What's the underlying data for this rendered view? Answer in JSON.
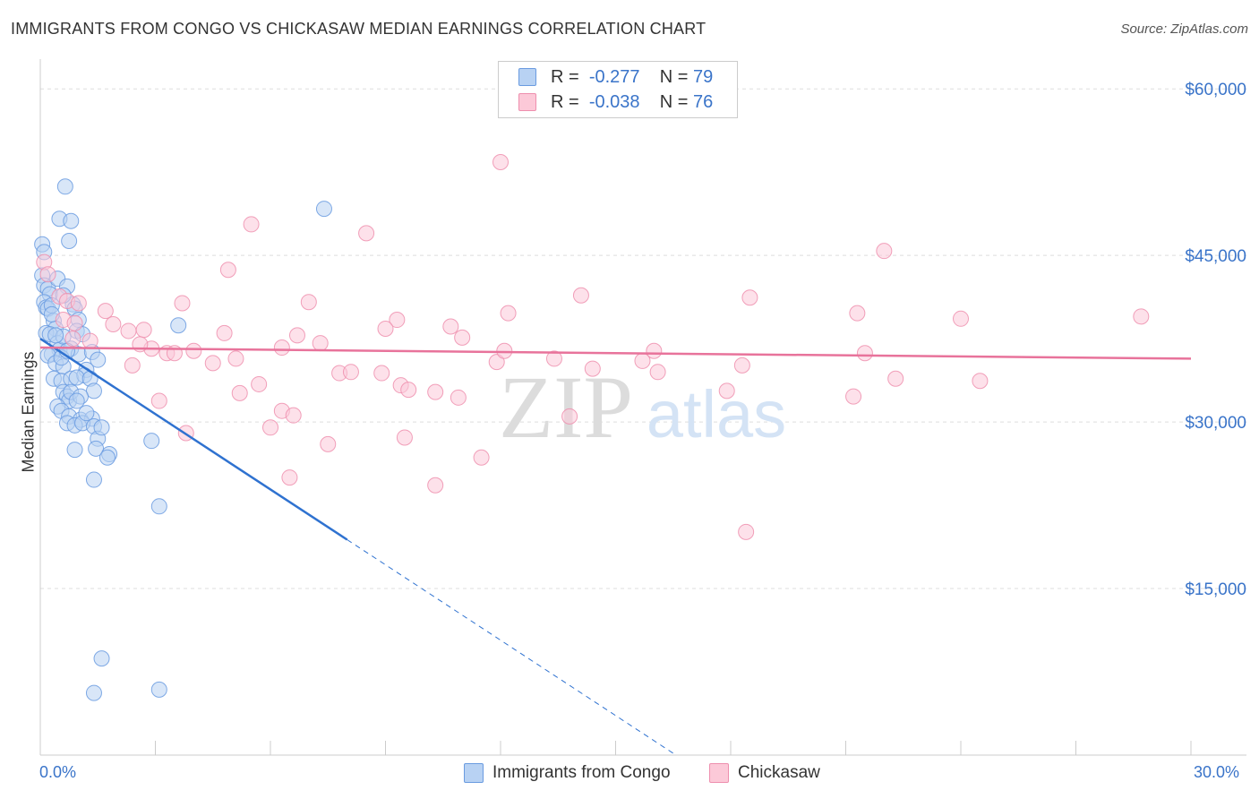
{
  "title": "IMMIGRANTS FROM CONGO VS CHICKASAW MEDIAN EARNINGS CORRELATION CHART",
  "source": "Source: ZipAtlas.com",
  "watermark": {
    "zip": "ZIP",
    "atlas": "atlas"
  },
  "legend": {
    "rows": [
      {
        "r_label": "R =",
        "r_value": "-0.277",
        "n_label": "N =",
        "n_value": "79",
        "color": "#b8d2f3",
        "stroke": "#6a9be0"
      },
      {
        "r_label": "R =",
        "r_value": "-0.038",
        "n_label": "N =",
        "n_value": "76",
        "color": "#fcc9d8",
        "stroke": "#ee8fae"
      }
    ]
  },
  "bottom_legend": [
    "Immigrants from Congo",
    "Chickasaw"
  ],
  "chart_data": {
    "type": "scatter",
    "xlabel": "",
    "ylabel": "Median Earnings",
    "xlim": [
      0,
      30
    ],
    "ylim": [
      0,
      63000
    ],
    "x_tick_labels": [
      "0.0%",
      "30.0%"
    ],
    "y_ticks": [
      15000,
      30000,
      45000,
      60000
    ],
    "y_tick_labels": [
      "$15,000",
      "$30,000",
      "$45,000",
      "$60,000"
    ],
    "grid": true,
    "legend_position": "top-center",
    "series": [
      {
        "name": "Immigrants from Congo",
        "color": "#6a9be0",
        "fill": "#b8d2f3",
        "line_color": "#2f72d0",
        "trend": {
          "x0": 0.0,
          "y0": 37500,
          "x1": 8.0,
          "y1": 19400,
          "dash_to_x": 16.5
        },
        "points": [
          [
            0.05,
            46000
          ],
          [
            0.1,
            45300
          ],
          [
            0.05,
            43200
          ],
          [
            0.1,
            42300
          ],
          [
            0.2,
            42000
          ],
          [
            0.25,
            41500
          ],
          [
            0.1,
            40800
          ],
          [
            0.15,
            40300
          ],
          [
            0.2,
            40200
          ],
          [
            0.3,
            40500
          ],
          [
            0.35,
            39100
          ],
          [
            0.4,
            38400
          ],
          [
            0.15,
            38000
          ],
          [
            0.25,
            37900
          ],
          [
            0.45,
            37100
          ],
          [
            0.5,
            36500
          ],
          [
            0.3,
            36100
          ],
          [
            0.2,
            36000
          ],
          [
            0.4,
            35300
          ],
          [
            0.6,
            35000
          ],
          [
            0.35,
            33900
          ],
          [
            0.55,
            33700
          ],
          [
            0.8,
            33900
          ],
          [
            0.6,
            32700
          ],
          [
            0.7,
            32300
          ],
          [
            0.75,
            31900
          ],
          [
            0.45,
            31400
          ],
          [
            0.55,
            31000
          ],
          [
            0.75,
            30500
          ],
          [
            1.05,
            30200
          ],
          [
            1.35,
            30300
          ],
          [
            0.7,
            29900
          ],
          [
            0.9,
            29700
          ],
          [
            1.1,
            29900
          ],
          [
            1.4,
            29600
          ],
          [
            1.5,
            28500
          ],
          [
            1.45,
            27600
          ],
          [
            1.8,
            27100
          ],
          [
            1.75,
            26800
          ],
          [
            1.4,
            24800
          ],
          [
            0.65,
            51200
          ],
          [
            0.5,
            48300
          ],
          [
            0.8,
            48100
          ],
          [
            0.75,
            46300
          ],
          [
            0.45,
            42900
          ],
          [
            0.7,
            42200
          ],
          [
            0.85,
            40600
          ],
          [
            0.9,
            40200
          ],
          [
            1.0,
            39200
          ],
          [
            0.95,
            38200
          ],
          [
            1.1,
            37900
          ],
          [
            0.6,
            37700
          ],
          [
            0.8,
            36600
          ],
          [
            1.0,
            36100
          ],
          [
            1.35,
            36300
          ],
          [
            1.5,
            35600
          ],
          [
            1.2,
            34700
          ],
          [
            1.15,
            34200
          ],
          [
            0.95,
            34000
          ],
          [
            1.3,
            33900
          ],
          [
            1.4,
            32800
          ],
          [
            0.8,
            32700
          ],
          [
            1.05,
            32300
          ],
          [
            0.95,
            31900
          ],
          [
            3.6,
            38700
          ],
          [
            2.9,
            28300
          ],
          [
            3.1,
            22400
          ],
          [
            7.4,
            49200
          ],
          [
            1.6,
            8700
          ],
          [
            1.4,
            5600
          ],
          [
            3.1,
            5900
          ],
          [
            0.6,
            41400
          ],
          [
            0.3,
            39700
          ],
          [
            0.55,
            35800
          ],
          [
            1.2,
            30800
          ],
          [
            1.6,
            29500
          ],
          [
            0.9,
            27500
          ],
          [
            0.7,
            36400
          ],
          [
            0.4,
            37800
          ]
        ]
      },
      {
        "name": "Chickasaw",
        "color": "#ee8fae",
        "fill": "#fcc9d8",
        "line_color": "#e8739b",
        "trend": {
          "x0": 0.0,
          "y0": 36700,
          "x1": 30.0,
          "y1": 35700
        },
        "points": [
          [
            0.1,
            44400
          ],
          [
            0.2,
            43300
          ],
          [
            0.5,
            41300
          ],
          [
            0.7,
            40900
          ],
          [
            1.0,
            40700
          ],
          [
            1.7,
            40000
          ],
          [
            0.6,
            39200
          ],
          [
            0.9,
            38900
          ],
          [
            2.3,
            38200
          ],
          [
            2.7,
            38300
          ],
          [
            0.85,
            37500
          ],
          [
            1.3,
            37300
          ],
          [
            2.9,
            36600
          ],
          [
            3.3,
            36200
          ],
          [
            4.0,
            36400
          ],
          [
            4.5,
            35300
          ],
          [
            5.1,
            35700
          ],
          [
            6.3,
            36700
          ],
          [
            6.7,
            37800
          ],
          [
            7.3,
            37100
          ],
          [
            7.8,
            34400
          ],
          [
            8.1,
            34500
          ],
          [
            8.9,
            34400
          ],
          [
            9.4,
            33300
          ],
          [
            9.6,
            32900
          ],
          [
            10.3,
            32700
          ],
          [
            10.9,
            32200
          ],
          [
            11.9,
            35400
          ],
          [
            12.1,
            36400
          ],
          [
            13.4,
            35700
          ],
          [
            14.4,
            34800
          ],
          [
            15.7,
            35500
          ],
          [
            16.1,
            34500
          ],
          [
            17.9,
            32800
          ],
          [
            18.3,
            35100
          ],
          [
            21.2,
            32300
          ],
          [
            21.5,
            36200
          ],
          [
            22.3,
            33900
          ],
          [
            24.5,
            33700
          ],
          [
            28.7,
            39500
          ],
          [
            12.0,
            53400
          ],
          [
            5.5,
            47800
          ],
          [
            8.5,
            47000
          ],
          [
            4.9,
            43700
          ],
          [
            3.7,
            40700
          ],
          [
            7.0,
            40800
          ],
          [
            9.3,
            39200
          ],
          [
            10.7,
            38600
          ],
          [
            12.2,
            39800
          ],
          [
            14.1,
            41400
          ],
          [
            18.5,
            41200
          ],
          [
            21.3,
            39800
          ],
          [
            24.0,
            39300
          ],
          [
            22.0,
            45400
          ],
          [
            1.9,
            38800
          ],
          [
            2.6,
            37000
          ],
          [
            3.1,
            31900
          ],
          [
            3.8,
            29000
          ],
          [
            5.2,
            32600
          ],
          [
            6.0,
            29500
          ],
          [
            6.3,
            31000
          ],
          [
            6.6,
            30600
          ],
          [
            7.5,
            28000
          ],
          [
            9.5,
            28600
          ],
          [
            10.3,
            24300
          ],
          [
            11.5,
            26800
          ],
          [
            13.8,
            30500
          ],
          [
            18.4,
            20100
          ],
          [
            6.5,
            25000
          ],
          [
            2.4,
            35100
          ],
          [
            3.5,
            36200
          ],
          [
            4.8,
            38000
          ],
          [
            5.7,
            33400
          ],
          [
            9.0,
            38400
          ],
          [
            11.0,
            37600
          ],
          [
            16.0,
            36400
          ]
        ]
      }
    ]
  }
}
